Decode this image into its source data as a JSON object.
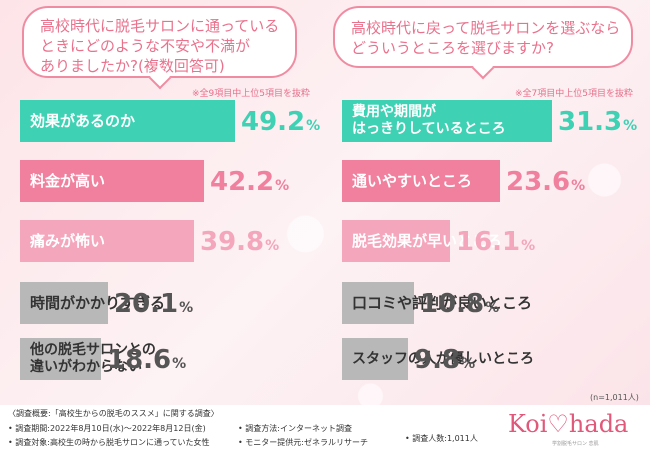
{
  "left": {
    "question": [
      "高校時代に脱毛サロンに通っている",
      "ときにどのような不安や不満が",
      "ありましたか?(複数回答可)"
    ],
    "note": "※全9項目中上位5項目を抜粋"
  },
  "right": {
    "question": [
      "高校時代に戻って脱毛サロンを選ぶなら",
      "どういうところを選びますか?"
    ],
    "note": "※全7項目中上位5項目を抜粋"
  },
  "chart_data": [
    {
      "type": "bar",
      "categories": [
        "効果があるのか",
        "料金が高い",
        "痛みが怖い",
        "時間がかかりすぎる",
        "他の脱毛サロンとの\n違いがわからない"
      ],
      "values": [
        49.2,
        42.2,
        39.8,
        20.1,
        18.6
      ],
      "colors": [
        "#3fd1b4",
        "#f0809d",
        "#f4a6bc",
        "#b8b8b8",
        "#b8b8b8"
      ],
      "value_colors": [
        "#3fd1b4",
        "#f0809d",
        "#f4a6bc",
        "#555555",
        "#555555"
      ]
    },
    {
      "type": "bar",
      "categories": [
        "費用や期間が\nはっきりしているところ",
        "通いやすいところ",
        "脱毛効果が早いところ",
        "口コミや評判が良いところ",
        "スタッフの人が優しいところ"
      ],
      "values": [
        31.3,
        23.6,
        16.1,
        10.8,
        9.8
      ],
      "colors": [
        "#3fd1b4",
        "#f0809d",
        "#f4a6bc",
        "#b8b8b8",
        "#b8b8b8"
      ],
      "value_colors": [
        "#3fd1b4",
        "#f0809d",
        "#f4a6bc",
        "#555555",
        "#555555"
      ]
    }
  ],
  "n_note": "(n=1,011人)",
  "footer": {
    "overview": "〈調査概要:「高校生からの脱毛のススメ」に関する調査〉",
    "period": "• 調査期間:2022年8月10日(水)〜2022年8月12日(金)",
    "target": "• 調査対象:高校生の時から脱毛サロンに通っていた女性",
    "method": "• 調査方法:インターネット調査",
    "provider": "• モニター提供元:ゼネラルリサーチ",
    "count": "• 調査人数:1,011人"
  },
  "logo": {
    "text": "Koi♡hada",
    "sub": "学割脱毛サロン 恋肌"
  }
}
